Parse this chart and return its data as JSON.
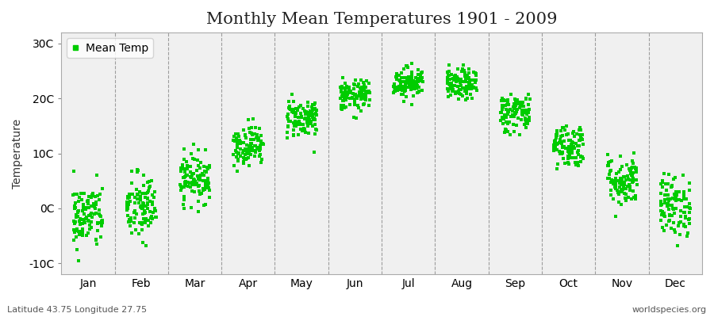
{
  "title": "Monthly Mean Temperatures 1901 - 2009",
  "ylabel": "Temperature",
  "xlabel": "",
  "subtitle_left": "Latitude 43.75 Longitude 27.75",
  "subtitle_right": "worldspecies.org",
  "dot_color": "#00cc00",
  "fig_facecolor": "#ffffff",
  "plot_bg_color": "#f0f0f0",
  "ytick_labels": [
    "-10C",
    "0C",
    "10C",
    "20C",
    "30C"
  ],
  "ytick_values": [
    -10,
    0,
    10,
    20,
    30
  ],
  "ylim": [
    -12,
    32
  ],
  "months": [
    "Jan",
    "Feb",
    "Mar",
    "Apr",
    "May",
    "Jun",
    "Jul",
    "Aug",
    "Sep",
    "Oct",
    "Nov",
    "Dec"
  ],
  "monthly_means": [
    -1.5,
    0.0,
    5.5,
    11.5,
    16.5,
    20.5,
    23.0,
    22.5,
    17.5,
    11.5,
    5.0,
    0.5
  ],
  "monthly_stds": [
    3.0,
    3.2,
    2.2,
    1.8,
    1.8,
    1.4,
    1.4,
    1.4,
    1.8,
    2.0,
    2.3,
    2.8
  ],
  "n_years": 109,
  "seed": 42,
  "marker_size": 6,
  "dot_alpha": 1.0,
  "title_fontsize": 15,
  "axis_fontsize": 10,
  "label_fontsize": 10,
  "jitter": 0.28
}
